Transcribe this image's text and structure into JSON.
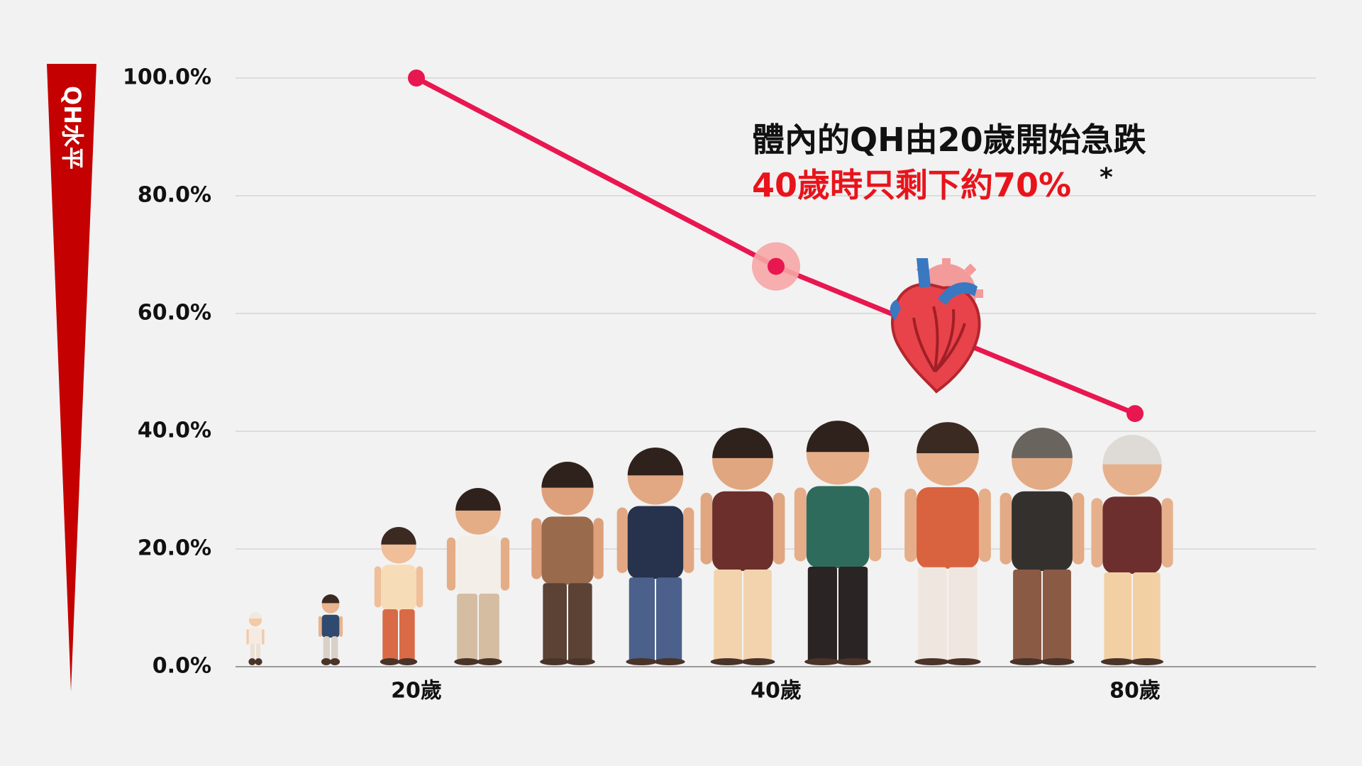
{
  "chart_data": {
    "type": "line",
    "ylabel": "QH水平",
    "x_ticks": [
      "20歲",
      "40歲",
      "80歲"
    ],
    "y_ticks": [
      "100.0%",
      "80.0%",
      "60.0%",
      "40.0%",
      "20.0%",
      "0.0%"
    ],
    "ylim": [
      0,
      100
    ],
    "series": [
      {
        "values": [
          {
            "x": "20歲",
            "y": 100
          },
          {
            "x": "40歲",
            "y": 68
          },
          {
            "x": "80歲",
            "y": 43
          }
        ]
      }
    ],
    "highlight_point": "40歲",
    "grid": true,
    "annotation": {
      "line1": "體內的QH由20歲開始急跌",
      "line2": "40歲時只剩下約70%",
      "mark": "*"
    },
    "illustration": {
      "people_icon": "people-age-progression-icon",
      "heart_icon": "heart-icon"
    },
    "colors": {
      "line": "#e8174f",
      "highlight": "#f6a6a6",
      "axis_bar": "#c40000",
      "accent_text": "#e8141b",
      "grid": "#d4d4d4"
    }
  }
}
